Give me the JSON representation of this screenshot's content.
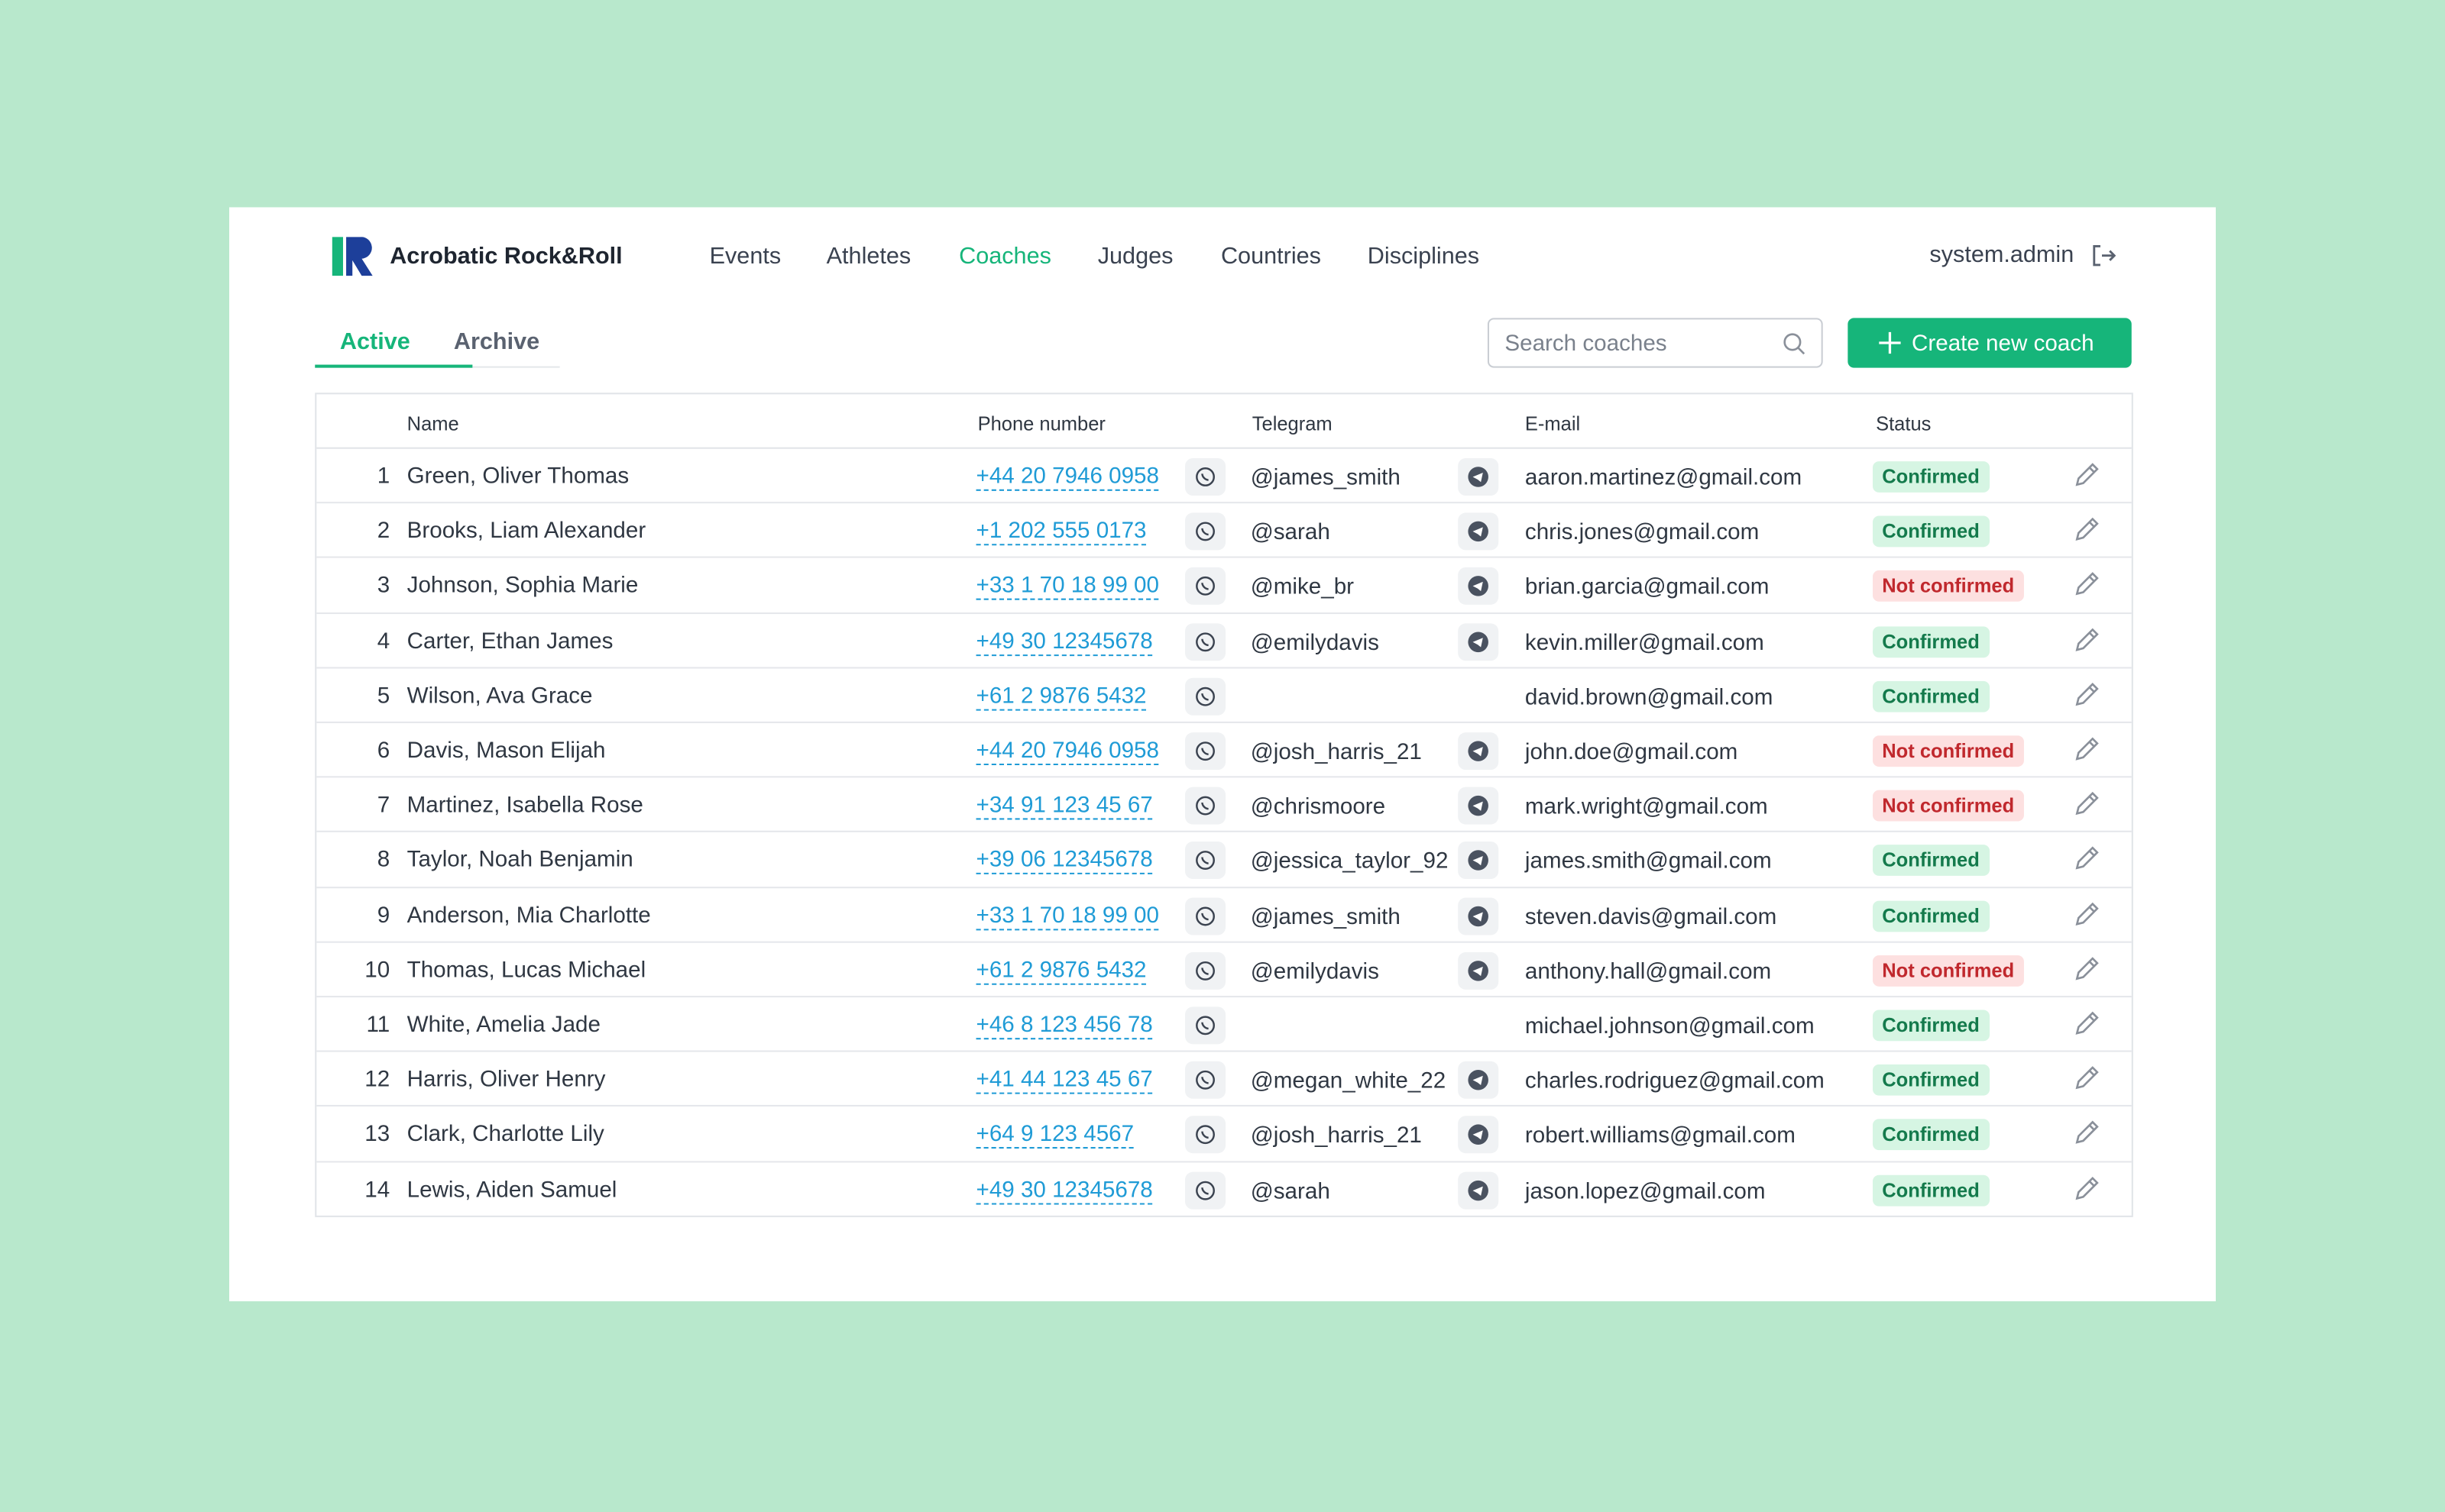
{
  "header": {
    "brand": "Acrobatic Rock&Roll",
    "nav": [
      {
        "label": "Events",
        "active": false
      },
      {
        "label": "Athletes",
        "active": false
      },
      {
        "label": "Coaches",
        "active": true
      },
      {
        "label": "Judges",
        "active": false
      },
      {
        "label": "Countries",
        "active": false
      },
      {
        "label": "Disciplines",
        "active": false
      }
    ],
    "user": "system.admin"
  },
  "tabs": [
    {
      "label": "Active",
      "active": true
    },
    {
      "label": "Archive",
      "active": false
    }
  ],
  "search": {
    "placeholder": "Search coaches"
  },
  "create_button": "Create new coach",
  "table": {
    "columns": [
      "Name",
      "Phone number",
      "Telegram",
      "E-mail",
      "Status"
    ],
    "rows": [
      {
        "number": "1",
        "name": "Green, Oliver Thomas",
        "phone": "+44 20 7946 0958",
        "telegram": "@james_smith",
        "email": "aaron.martinez@gmail.com",
        "status": "Confirmed",
        "status_color": "green"
      },
      {
        "number": "2",
        "name": "Brooks, Liam Alexander",
        "phone": "+1 202 555 0173",
        "telegram": "@sarah",
        "email": "chris.jones@gmail.com",
        "status": "Confirmed",
        "status_color": "green"
      },
      {
        "number": "3",
        "name": "Johnson, Sophia Marie",
        "phone": "+33 1 70 18 99 00",
        "telegram": "@mike_br",
        "email": "brian.garcia@gmail.com",
        "status": "Not confirmed",
        "status_color": "red"
      },
      {
        "number": "4",
        "name": "Carter, Ethan James",
        "phone": "+49 30 12345678",
        "telegram": "@emilydavis",
        "email": "kevin.miller@gmail.com",
        "status": "Confirmed",
        "status_color": "green"
      },
      {
        "number": "5",
        "name": "Wilson, Ava Grace",
        "phone": "+61 2 9876 5432",
        "telegram": null,
        "email": "david.brown@gmail.com",
        "status": "Confirmed",
        "status_color": "green"
      },
      {
        "number": "6",
        "name": "Davis, Mason Elijah",
        "phone": "+44 20 7946 0958",
        "telegram": "@josh_harris_21",
        "email": "john.doe@gmail.com",
        "status": "Not confirmed",
        "status_color": "red"
      },
      {
        "number": "7",
        "name": "Martinez, Isabella Rose",
        "phone": "+34 91 123 45 67",
        "telegram": "@chrismoore",
        "email": "mark.wright@gmail.com",
        "status": "Not confirmed",
        "status_color": "red"
      },
      {
        "number": "8",
        "name": "Taylor, Noah Benjamin",
        "phone": "+39 06 12345678",
        "telegram": "@jessica_taylor_92",
        "email": "james.smith@gmail.com",
        "status": "Confirmed",
        "status_color": "green"
      },
      {
        "number": "9",
        "name": "Anderson, Mia Charlotte",
        "phone": "+33 1 70 18 99 00",
        "telegram": "@james_smith",
        "email": "steven.davis@gmail.com",
        "status": "Confirmed",
        "status_color": "green"
      },
      {
        "number": "10",
        "name": "Thomas, Lucas Michael",
        "phone": "+61 2 9876 5432",
        "telegram": "@emilydavis",
        "email": "anthony.hall@gmail.com",
        "status": "Not confirmed",
        "status_color": "red"
      },
      {
        "number": "11",
        "name": "White, Amelia Jade",
        "phone": "+46 8 123 456 78",
        "telegram": null,
        "email": "michael.johnson@gmail.com",
        "status": "Confirmed",
        "status_color": "green"
      },
      {
        "number": "12",
        "name": "Harris, Oliver Henry",
        "phone": "+41 44 123 45 67",
        "telegram": "@megan_white_22",
        "email": "charles.rodriguez@gmail.com",
        "status": "Confirmed",
        "status_color": "green"
      },
      {
        "number": "13",
        "name": "Clark, Charlotte Lily",
        "phone": "+64 9 123 4567",
        "telegram": "@josh_harris_21",
        "email": "robert.williams@gmail.com",
        "status": "Confirmed",
        "status_color": "green"
      },
      {
        "number": "14",
        "name": "Lewis, Aiden Samuel",
        "phone": "+49 30 12345678",
        "telegram": "@sarah",
        "email": "jason.lopez@gmail.com",
        "status": "Confirmed",
        "status_color": "green"
      }
    ]
  }
}
